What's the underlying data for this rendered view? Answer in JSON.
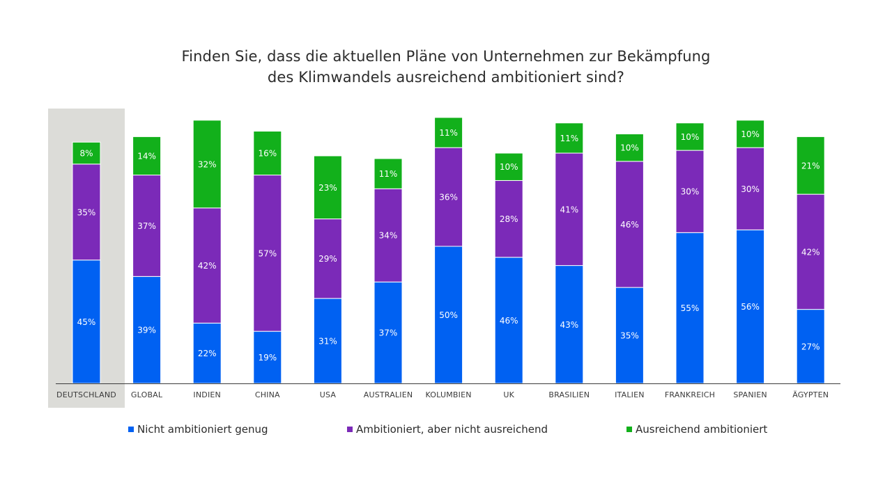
{
  "chart_data": {
    "type": "bar",
    "stacked": true,
    "title": [
      "Finden Sie, dass die aktuellen Pläne von Unternehmen zur Bekämpfung",
      "des Klimwandels ausreichend ambitioniert sind?"
    ],
    "categories": [
      "DEUTSCHLAND",
      "GLOBAL",
      "INDIEN",
      "CHINA",
      "USA",
      "AUSTRALIEN",
      "KOLUMBIEN",
      "UK",
      "BRASILIEN",
      "ITALIEN",
      "FRANKREICH",
      "SPANIEN",
      "ÄGYPTEN"
    ],
    "highlighted_category": "DEUTSCHLAND",
    "series": [
      {
        "name": "Nicht ambitioniert genug",
        "color": "#0061f2",
        "values": [
          45,
          39,
          22,
          19,
          31,
          37,
          50,
          46,
          43,
          35,
          55,
          56,
          27
        ]
      },
      {
        "name": "Ambitioniert, aber nicht ausreichend",
        "color": "#7b2ab8",
        "values": [
          35,
          37,
          42,
          57,
          29,
          34,
          36,
          28,
          41,
          46,
          30,
          30,
          42
        ]
      },
      {
        "name": "Ausreichend ambitioniert",
        "color": "#12b01b",
        "values": [
          8,
          14,
          32,
          16,
          23,
          11,
          11,
          10,
          11,
          10,
          10,
          10,
          21
        ]
      }
    ],
    "value_suffix": "%",
    "legend_position": "bottom",
    "grid": false,
    "highlight_color": "#dcdcd8",
    "axis_color": "#3a3a3a"
  }
}
